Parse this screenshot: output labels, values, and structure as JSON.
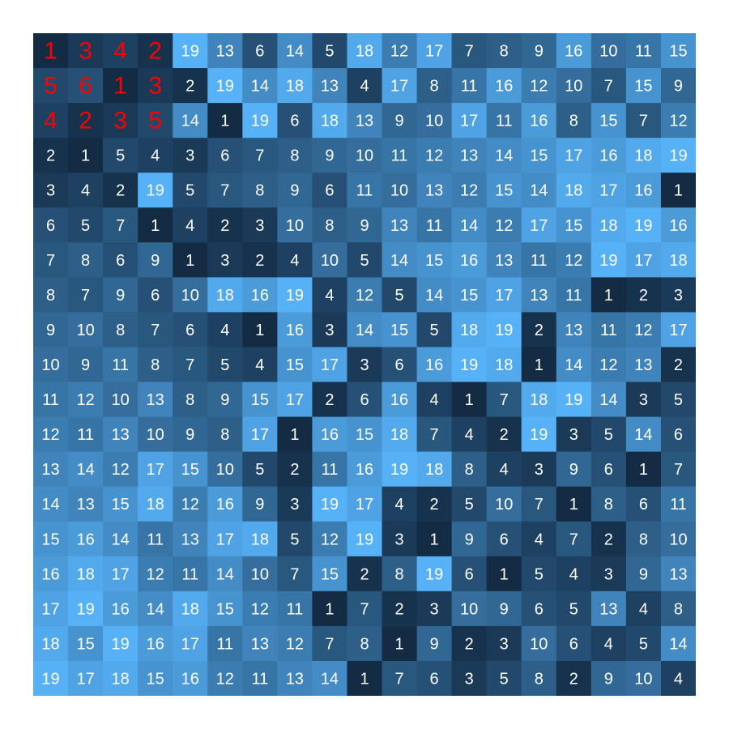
{
  "chart_data": {
    "type": "heatmap",
    "title": "",
    "xlabel": "",
    "ylabel": "",
    "value_range": [
      1,
      19
    ],
    "grid": false,
    "legend": "none",
    "colors": {
      "low": "#132b43",
      "high": "#56b1f7",
      "label_default": "#ffffff",
      "label_highlight": "#ff0000"
    },
    "highlight_block": {
      "rows": 3,
      "cols": 4
    },
    "values": [
      [
        1,
        3,
        4,
        2,
        19,
        13,
        6,
        14,
        5,
        18,
        12,
        17,
        7,
        8,
        9,
        16,
        10,
        11,
        15
      ],
      [
        5,
        6,
        1,
        3,
        2,
        19,
        14,
        18,
        13,
        4,
        17,
        8,
        11,
        16,
        12,
        10,
        7,
        15,
        9
      ],
      [
        4,
        2,
        3,
        5,
        14,
        1,
        19,
        6,
        18,
        13,
        9,
        10,
        17,
        11,
        16,
        8,
        15,
        7,
        12
      ],
      [
        2,
        1,
        5,
        4,
        3,
        6,
        7,
        8,
        9,
        10,
        11,
        12,
        13,
        14,
        15,
        17,
        16,
        18,
        19
      ],
      [
        3,
        4,
        2,
        19,
        5,
        7,
        8,
        9,
        6,
        11,
        10,
        13,
        12,
        15,
        14,
        18,
        17,
        16,
        1
      ],
      [
        6,
        5,
        7,
        1,
        4,
        2,
        3,
        10,
        8,
        9,
        13,
        11,
        14,
        12,
        17,
        15,
        18,
        19,
        16
      ],
      [
        7,
        8,
        6,
        9,
        1,
        3,
        2,
        4,
        10,
        5,
        14,
        15,
        16,
        13,
        11,
        12,
        19,
        17,
        18
      ],
      [
        8,
        7,
        9,
        6,
        10,
        18,
        16,
        19,
        4,
        12,
        5,
        14,
        15,
        17,
        13,
        11,
        1,
        2,
        3
      ],
      [
        9,
        10,
        8,
        7,
        6,
        4,
        1,
        16,
        3,
        14,
        15,
        5,
        18,
        19,
        2,
        13,
        11,
        12,
        17
      ],
      [
        10,
        9,
        11,
        8,
        7,
        5,
        4,
        15,
        17,
        3,
        6,
        16,
        19,
        18,
        1,
        14,
        12,
        13,
        2
      ],
      [
        11,
        12,
        10,
        13,
        8,
        9,
        15,
        17,
        2,
        6,
        16,
        4,
        1,
        7,
        18,
        19,
        14,
        3,
        5
      ],
      [
        12,
        11,
        13,
        10,
        9,
        8,
        17,
        1,
        16,
        15,
        18,
        7,
        4,
        2,
        19,
        3,
        5,
        14,
        6
      ],
      [
        13,
        14,
        12,
        17,
        15,
        10,
        5,
        2,
        11,
        16,
        19,
        18,
        8,
        4,
        3,
        9,
        6,
        1,
        7
      ],
      [
        14,
        13,
        15,
        18,
        12,
        16,
        9,
        3,
        19,
        17,
        4,
        2,
        5,
        10,
        7,
        1,
        8,
        6,
        11
      ],
      [
        15,
        16,
        14,
        11,
        13,
        17,
        18,
        5,
        12,
        19,
        3,
        1,
        9,
        6,
        4,
        7,
        2,
        8,
        10
      ],
      [
        16,
        18,
        17,
        12,
        11,
        14,
        10,
        7,
        15,
        2,
        8,
        19,
        6,
        1,
        5,
        4,
        3,
        9,
        13
      ],
      [
        17,
        19,
        16,
        14,
        18,
        15,
        12,
        11,
        1,
        7,
        2,
        3,
        10,
        9,
        6,
        5,
        13,
        4,
        8
      ],
      [
        18,
        15,
        19,
        16,
        17,
        11,
        13,
        12,
        7,
        8,
        1,
        9,
        2,
        3,
        10,
        6,
        4,
        5,
        14
      ],
      [
        19,
        17,
        18,
        15,
        16,
        12,
        11,
        13,
        14,
        1,
        7,
        6,
        3,
        5,
        8,
        2,
        9,
        10,
        4
      ]
    ]
  }
}
